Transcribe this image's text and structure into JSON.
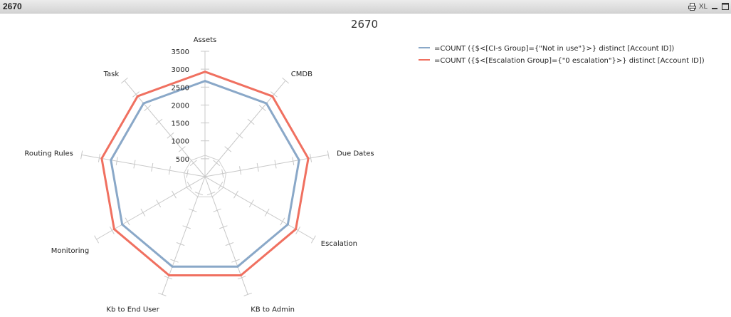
{
  "window": {
    "title": "2670",
    "controls": {
      "print": "print-icon",
      "xl_label": "XL",
      "minimize": "minimize-icon",
      "maximize": "maximize-icon"
    }
  },
  "chart_data": {
    "type": "radar",
    "title": "2670",
    "categories": [
      "Assets",
      "CMDB",
      "Due Dates",
      "Escalation",
      "KB to Admin",
      "Kb to End User",
      "Monitoring",
      "Routing Rules",
      "Task"
    ],
    "rlim": [
      0,
      3500
    ],
    "ticks": [
      500,
      1000,
      1500,
      2000,
      2500,
      3000,
      3500
    ],
    "tick_labels": [
      "500",
      "1000",
      "1500",
      "2000",
      "2500",
      "3000",
      "3500"
    ],
    "grid": true,
    "legend_position": "top-right",
    "series": [
      {
        "name": "=COUNT ({$<[CI-s Group]={\"Not in use\"}>} distinct [Account ID])",
        "color": "#8aa8c8",
        "values": [
          2670,
          2670,
          2670,
          2670,
          2670,
          2670,
          2670,
          2670,
          2670
        ]
      },
      {
        "name": "=COUNT ({$<[Escalation Group]={\"0 escalation\"}>} distinct [Account ID])",
        "color": "#f07060",
        "values": [
          2930,
          2930,
          2930,
          2930,
          2930,
          2930,
          2930,
          2930,
          2930
        ]
      }
    ]
  }
}
